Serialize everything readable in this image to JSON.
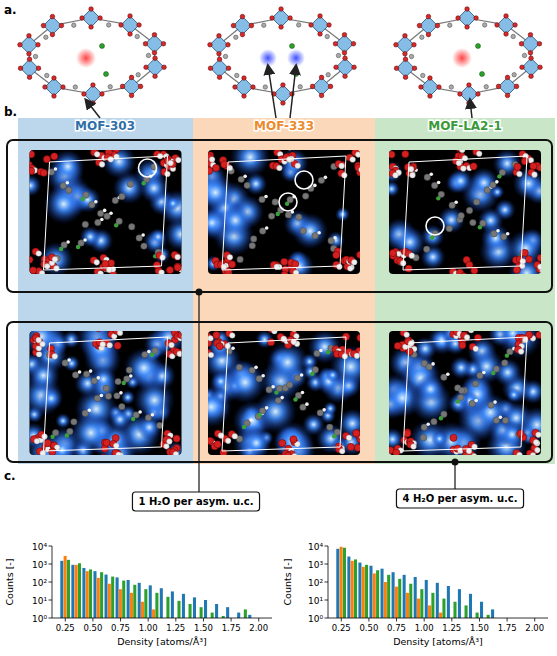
{
  "figure": {
    "panel_labels": [
      "a.",
      "b.",
      "c."
    ],
    "frames": [
      {
        "name": "MOF-303",
        "color": "#2f6fa8"
      },
      {
        "name": "MOF-333",
        "color": "#ec8a2c"
      },
      {
        "name": "MOF-LA2-1",
        "color": "#3a9a3a"
      }
    ]
  },
  "chart_data": [
    {
      "type": "bar",
      "title": "1 H₂O per asym. u.c.",
      "x_label": "Density [atoms/Å³]",
      "y_label": "Counts [-]",
      "log": "y",
      "bins": [
        0.2,
        0.3,
        0.4,
        0.5,
        0.6,
        0.7,
        0.8,
        0.9,
        1.0,
        1.1,
        1.2,
        1.3,
        1.4,
        1.5,
        1.6,
        1.7,
        1.8,
        1.9,
        2.0
      ],
      "series": [
        {
          "color": "#1f77b4",
          "values": [
            1500,
            900,
            600,
            400,
            260,
            180,
            130,
            90,
            65,
            45,
            30,
            22,
            14,
            10,
            6,
            4,
            2,
            1.5
          ]
        },
        {
          "color": "#ff7f0e",
          "values": [
            2800,
            900,
            400,
            170,
            80,
            40,
            25,
            8,
            3,
            null,
            null,
            null,
            null,
            null,
            null,
            null,
            null,
            null
          ]
        },
        {
          "color": "#2ca02c",
          "values": [
            1700,
            1100,
            500,
            350,
            200,
            120,
            70,
            40,
            25,
            15,
            9,
            6,
            4,
            2,
            1.3,
            null,
            3,
            null
          ]
        }
      ],
      "xlim": [
        0.13,
        2.12
      ],
      "ylim": [
        1,
        10000
      ],
      "xticks": [
        0.25,
        {
          "value": 0.5,
          "label": "0.50"
        },
        0.75,
        {
          "value": 1.0,
          "label": "1.00"
        },
        1.25,
        {
          "value": 1.5,
          "label": "1.50"
        },
        1.75,
        {
          "value": 2.0,
          "label": "2.00"
        }
      ],
      "yticks": [
        {
          "value": 1,
          "label": "10⁰"
        },
        {
          "value": 10,
          "label": "10¹"
        },
        {
          "value": 100,
          "label": "10²"
        },
        {
          "value": 1000,
          "label": "10³"
        },
        {
          "value": 10000,
          "label": "10⁴"
        }
      ]
    },
    {
      "type": "bar",
      "title": "4 H₂O per asym. u.c.",
      "x_label": "Density [atoms/Å³]",
      "y_label": "Counts [-]",
      "log": "y",
      "bins": [
        0.2,
        0.3,
        0.4,
        0.5,
        0.6,
        0.7,
        0.8,
        0.9,
        1.0,
        1.1,
        1.2,
        1.3,
        1.4,
        1.5,
        1.6,
        1.7,
        1.8,
        1.9,
        2.0
      ],
      "series": [
        {
          "color": "#1f77b4",
          "values": [
            7000,
            2600,
            1200,
            800,
            550,
            350,
            250,
            190,
            130,
            90,
            60,
            40,
            22,
            8,
            3,
            null,
            null,
            null
          ]
        },
        {
          "color": "#ff7f0e",
          "values": [
            9000,
            1500,
            700,
            300,
            100,
            55,
            25,
            12,
            5,
            2,
            null,
            null,
            null,
            null,
            null,
            null,
            null,
            null
          ]
        },
        {
          "color": "#2ca02c",
          "values": [
            8000,
            1800,
            900,
            450,
            250,
            150,
            80,
            40,
            25,
            12,
            8,
            5,
            2,
            1.5,
            null,
            null,
            null,
            null
          ]
        }
      ],
      "xlim": [
        0.13,
        2.12
      ],
      "ylim": [
        1,
        10000
      ],
      "xticks": [
        0.25,
        {
          "value": 0.5,
          "label": "0.50"
        },
        0.75,
        {
          "value": 1.0,
          "label": "1.00"
        },
        1.25,
        {
          "value": 1.5,
          "label": "1.50"
        },
        1.75,
        {
          "value": 2.0,
          "label": "2.00"
        }
      ],
      "yticks": [
        {
          "value": 1,
          "label": "10⁰"
        },
        {
          "value": 10,
          "label": "10¹"
        },
        {
          "value": 100,
          "label": "10²"
        },
        {
          "value": 1000,
          "label": "10³"
        },
        {
          "value": 10000,
          "label": "10⁴"
        }
      ]
    }
  ]
}
